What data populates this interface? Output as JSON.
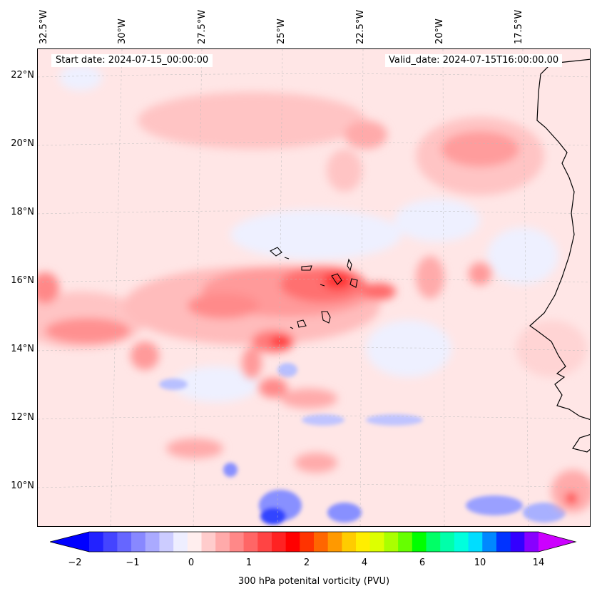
{
  "map": {
    "start_date": "Start date: 2024-07-15_00:00:00",
    "valid_date": "Valid_date: 2024-07-15T16:00:00.00",
    "lat_labels": [
      "22°N",
      "20°N",
      "18°N",
      "16°N",
      "14°N",
      "12°N",
      "10°N"
    ],
    "lon_labels": [
      "32.5°W",
      "30°W",
      "27.5°W",
      "25°W",
      "22.5°W",
      "20°W",
      "17.5°W"
    ],
    "lat_range": [
      8.9,
      22.8
    ],
    "lon_range": [
      -32.6,
      -15.2
    ],
    "field": "300 hPa potential vorticity",
    "islands": "Cape Verde",
    "coastline": "West Africa"
  },
  "colorbar": {
    "label": "300 hPa potenital vorticity (PVU)",
    "ticks": [
      "−2",
      "−1",
      "0",
      "1",
      "2",
      "4",
      "6",
      "10",
      "14"
    ],
    "colors": [
      "#0000ff",
      "#2222ff",
      "#4444ff",
      "#6666ff",
      "#8888ff",
      "#aaaaff",
      "#ccccff",
      "#eeeeff",
      "#ffeeee",
      "#ffcccc",
      "#ffaaaa",
      "#ff8888",
      "#ff6666",
      "#ff4444",
      "#ff2222",
      "#ff0000",
      "#ff3300",
      "#ff6600",
      "#ff9900",
      "#ffcc00",
      "#ffee00",
      "#ddff00",
      "#aaff00",
      "#66ff00",
      "#00ff00",
      "#00ff66",
      "#00ffaa",
      "#00ffdd",
      "#00ddff",
      "#0088ff",
      "#0033ff",
      "#3300ff",
      "#8800ff",
      "#cc00ff"
    ]
  }
}
